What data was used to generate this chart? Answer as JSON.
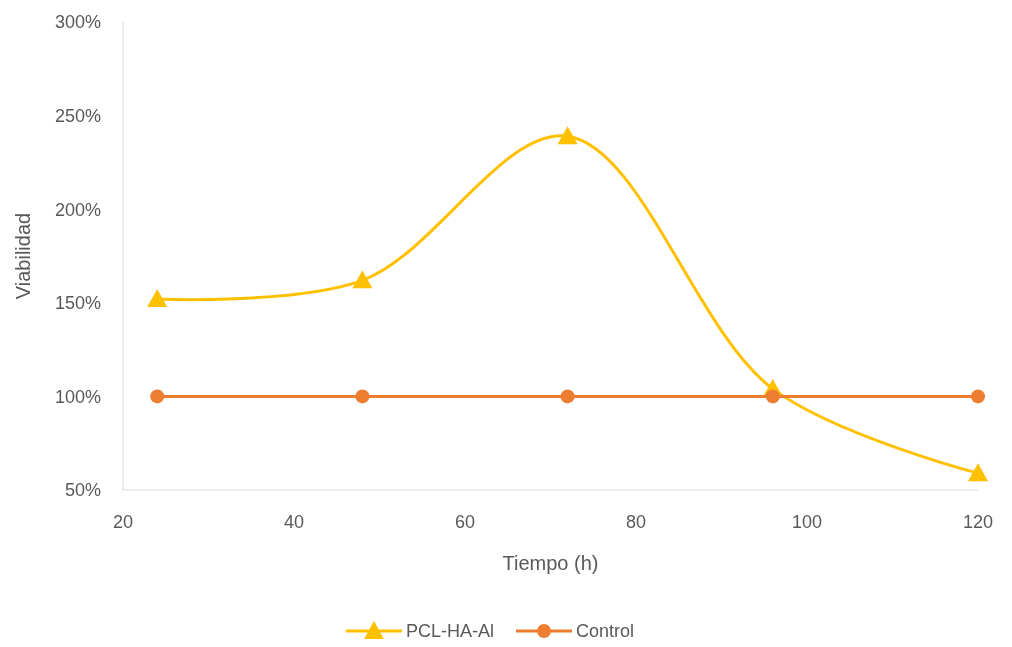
{
  "chart_data": {
    "type": "line",
    "xlabel": "Tiempo (h)",
    "ylabel": "Viabilidad",
    "x": [
      24,
      48,
      72,
      96,
      120
    ],
    "series": [
      {
        "name": "PCL-HA-Al",
        "color": "#ffc000",
        "values": [
          152,
          162,
          239,
          104,
          59
        ],
        "marker": "triangle"
      },
      {
        "name": "Control",
        "color": "#ed7d31",
        "values": [
          100,
          100,
          100,
          100,
          100
        ],
        "marker": "circle"
      }
    ],
    "xlim": [
      20,
      120
    ],
    "xticks": [
      20,
      40,
      60,
      80,
      100,
      120
    ],
    "ylim": [
      50,
      300
    ],
    "yticks": [
      {
        "value": 50,
        "label": "50%"
      },
      {
        "value": 100,
        "label": "100%"
      },
      {
        "value": 150,
        "label": "150%"
      },
      {
        "value": 200,
        "label": "200%"
      },
      {
        "value": 250,
        "label": "250%"
      },
      {
        "value": 300,
        "label": "300%"
      }
    ],
    "grid": false,
    "legend": "bottom",
    "line_style": "solid"
  }
}
